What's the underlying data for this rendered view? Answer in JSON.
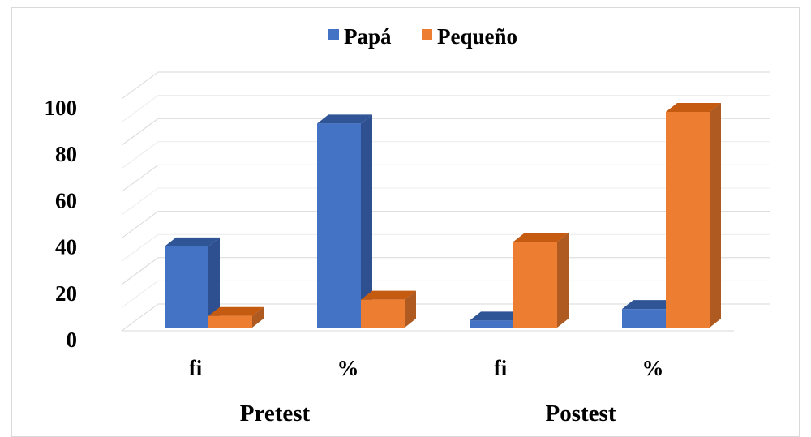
{
  "chart_data": {
    "type": "bar",
    "style": "3d-clustered-column",
    "title": "",
    "groups": [
      "Pretest",
      "Postest"
    ],
    "categories": [
      "fi",
      "%",
      "fi",
      "%"
    ],
    "series": [
      {
        "name": "Papá",
        "values": [
          35,
          88,
          3,
          8
        ]
      },
      {
        "name": "Pequeño",
        "values": [
          5,
          12,
          37,
          93
        ]
      }
    ],
    "yticks": [
      "0",
      "20",
      "40",
      "60",
      "80",
      "100"
    ],
    "ylim": [
      0,
      100
    ],
    "grid": true,
    "legend_position": "top",
    "colors": {
      "Papá": {
        "front": "#4472c4",
        "top": "#2f5597",
        "side": "#2e5090"
      },
      "Pequeño": {
        "front": "#ed7d31",
        "top": "#c55a11",
        "side": "#ae5a21"
      },
      "grid": "#d9d9d9"
    }
  }
}
